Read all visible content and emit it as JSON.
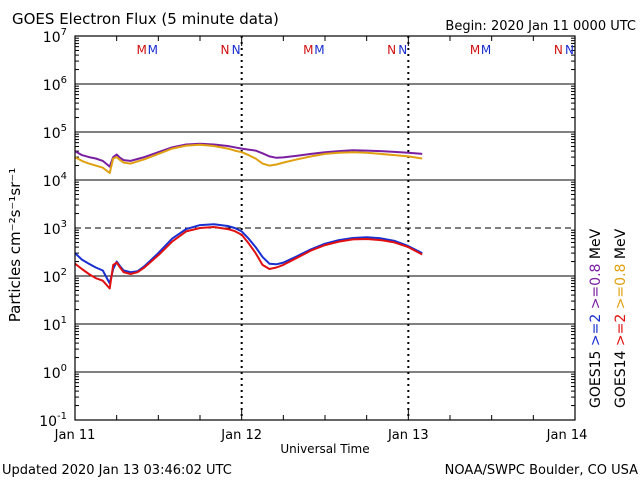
{
  "chart_data": {
    "type": "line",
    "title": "GOES Electron Flux (5 minute data)",
    "begin_label": "Begin: 2020 Jan 11 0000 UTC",
    "xlabel": "Universal Time",
    "ylabel": "Particles cm⁻²s⁻¹sr⁻¹",
    "footer_left": "Updated 2020 Jan 13 03:46:02 UTC",
    "footer_right": "NOAA/SWPC Boulder, CO USA",
    "y_scale": "log",
    "ylim": [
      0.1,
      10000000
    ],
    "xlim_hours": [
      0,
      72
    ],
    "x_ticks": [
      {
        "hour": 0,
        "label": "Jan 11"
      },
      {
        "hour": 24,
        "label": "Jan 12"
      },
      {
        "hour": 48,
        "label": "Jan 13"
      },
      {
        "hour": 72,
        "label": "Jan 14"
      }
    ],
    "y_ticks": [
      {
        "exp": 7,
        "label": "10",
        "sup": "7"
      },
      {
        "exp": 6,
        "label": "10",
        "sup": "6"
      },
      {
        "exp": 5,
        "label": "10",
        "sup": "5"
      },
      {
        "exp": 4,
        "label": "10",
        "sup": "4"
      },
      {
        "exp": 3,
        "label": "10",
        "sup": "3"
      },
      {
        "exp": 2,
        "label": "10",
        "sup": "2"
      },
      {
        "exp": 1,
        "label": "10",
        "sup": "1"
      },
      {
        "exp": 0,
        "label": "10",
        "sup": "0"
      },
      {
        "exp": -1,
        "label": "10",
        "sup": "-1"
      }
    ],
    "threshold": {
      "value": 1000,
      "style": "dashed"
    },
    "day_boundary_hours": [
      24,
      48
    ],
    "markers": [
      {
        "hour": 9.6,
        "text": "M",
        "color": "#d01010"
      },
      {
        "hour": 11.2,
        "text": "M",
        "color": "#1a2fd0"
      },
      {
        "hour": 21.6,
        "text": "N",
        "color": "#d01010"
      },
      {
        "hour": 23.2,
        "text": "N",
        "color": "#1a2fd0"
      },
      {
        "hour": 33.6,
        "text": "M",
        "color": "#d01010"
      },
      {
        "hour": 35.2,
        "text": "M",
        "color": "#1a2fd0"
      },
      {
        "hour": 45.6,
        "text": "N",
        "color": "#d01010"
      },
      {
        "hour": 47.2,
        "text": "N",
        "color": "#1a2fd0"
      },
      {
        "hour": 57.6,
        "text": "M",
        "color": "#d01010"
      },
      {
        "hour": 59.2,
        "text": "M",
        "color": "#1a2fd0"
      },
      {
        "hour": 69.6,
        "text": "N",
        "color": "#d01010"
      },
      {
        "hour": 71.2,
        "text": "N",
        "color": "#1a2fd0"
      }
    ],
    "legend": {
      "placement": "right",
      "columns": [
        {
          "satellite": "GOES15",
          "gt2": ">=2",
          "gt08": ">=0.8",
          "unit": "MeV",
          "gt2_color": "#1a2fd0",
          "gt08_color": "#7a1fa0"
        },
        {
          "satellite": "GOES14",
          "gt2": ">=2",
          "gt08": ">=0.8",
          "unit": "MeV",
          "gt2_color": "#e01010",
          "gt08_color": "#e0a010"
        }
      ]
    },
    "series": [
      {
        "name": "GOES15 >=0.8 MeV",
        "color": "#7a1fa0",
        "x": [
          0,
          1,
          2,
          3,
          4,
          5,
          5.5,
          6,
          6.5,
          7,
          8,
          10,
          12,
          14,
          16,
          18,
          20,
          22,
          23,
          24,
          25,
          26,
          27,
          28,
          29,
          30,
          32,
          34,
          36,
          38,
          40,
          42,
          44,
          46,
          48,
          50
        ],
        "y": [
          40000,
          33000,
          30000,
          28000,
          25000,
          19000,
          30000,
          34000,
          29000,
          26000,
          25000,
          30000,
          38000,
          48000,
          55000,
          57000,
          55000,
          51000,
          48000,
          45000,
          43000,
          41000,
          36000,
          31000,
          29000,
          29500,
          32000,
          35000,
          38000,
          40000,
          41500,
          41000,
          40000,
          38500,
          37000,
          35000
        ]
      },
      {
        "name": "GOES14 >=0.8 MeV",
        "color": "#e0a010",
        "x": [
          0,
          1,
          2,
          3,
          4,
          5,
          5.5,
          6,
          6.5,
          7,
          8,
          10,
          12,
          14,
          16,
          18,
          20,
          22,
          23,
          24,
          25,
          26,
          27,
          28,
          29,
          30,
          32,
          34,
          36,
          38,
          40,
          42,
          44,
          46,
          48,
          50
        ],
        "y": [
          30000,
          25000,
          22000,
          20000,
          18000,
          14000,
          28000,
          30000,
          26000,
          23000,
          22000,
          27000,
          35000,
          45000,
          52000,
          54000,
          51000,
          45000,
          41000,
          38000,
          33000,
          28000,
          22000,
          20000,
          21000,
          23000,
          27000,
          31000,
          35000,
          37000,
          38000,
          37000,
          35000,
          33000,
          31000,
          28000
        ]
      },
      {
        "name": "GOES15 >=2 MeV",
        "color": "#1a2fd0",
        "x": [
          0,
          1,
          2,
          3,
          4,
          5,
          5.5,
          6,
          6.5,
          7,
          8,
          9,
          10,
          12,
          14,
          16,
          18,
          20,
          22,
          23,
          24,
          25,
          26,
          27,
          28,
          29,
          30,
          32,
          34,
          36,
          38,
          40,
          42,
          44,
          46,
          48,
          50
        ],
        "y": [
          300,
          220,
          180,
          150,
          130,
          70,
          140,
          200,
          160,
          130,
          120,
          125,
          160,
          300,
          600,
          950,
          1150,
          1200,
          1100,
          1000,
          850,
          600,
          400,
          250,
          180,
          175,
          190,
          260,
          360,
          470,
          560,
          620,
          640,
          610,
          540,
          420,
          300
        ]
      },
      {
        "name": "GOES14 >=2 MeV",
        "color": "#e01010",
        "x": [
          0,
          1,
          2,
          3,
          4,
          5,
          5.5,
          6,
          6.5,
          7,
          8,
          9,
          10,
          12,
          14,
          16,
          18,
          20,
          22,
          23,
          24,
          25,
          26,
          27,
          28,
          29,
          30,
          32,
          34,
          36,
          38,
          40,
          42,
          44,
          46,
          48,
          50
        ],
        "y": [
          180,
          140,
          110,
          90,
          80,
          55,
          170,
          190,
          150,
          120,
          110,
          120,
          150,
          270,
          520,
          850,
          1000,
          1050,
          950,
          860,
          720,
          480,
          300,
          170,
          140,
          150,
          170,
          240,
          340,
          440,
          520,
          580,
          590,
          560,
          500,
          400,
          280
        ]
      }
    ]
  }
}
